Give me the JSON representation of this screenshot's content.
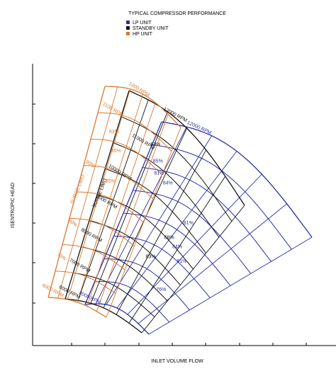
{
  "title": "TYPICAL COMPRESSOR PERFORMANCE",
  "legend": [
    {
      "name": "LP UNIT",
      "color": "#2b2fa8"
    },
    {
      "name": "STANDBY UNIT",
      "color": "#111111"
    },
    {
      "name": "HP UNIT",
      "color": "#d9782d"
    }
  ],
  "x_axis_label": "INLET VOLUME FLOW",
  "y_axis_label": "ISENTROPIC HEAD",
  "annotations": {
    "hp": [
      "1200 RPM",
      "1100 RPM",
      "83%",
      "85%",
      "85%",
      "SURGE LIMIT",
      "90%",
      "80%",
      "70%",
      "6000 RPM"
    ],
    "standby": [
      "12000 RPM",
      "11000 RPM",
      "10000 RPM",
      "9000 RPM",
      "8000 RPM",
      "7000 RPM",
      "6000 RPM",
      "SURGE LIMIT",
      "83%",
      "86%",
      "83%"
    ],
    "lp": [
      "12000 RPM",
      "85%",
      "81%",
      "84%",
      "81%",
      "84%",
      "81%",
      "76%",
      "8000 RPM"
    ]
  }
}
